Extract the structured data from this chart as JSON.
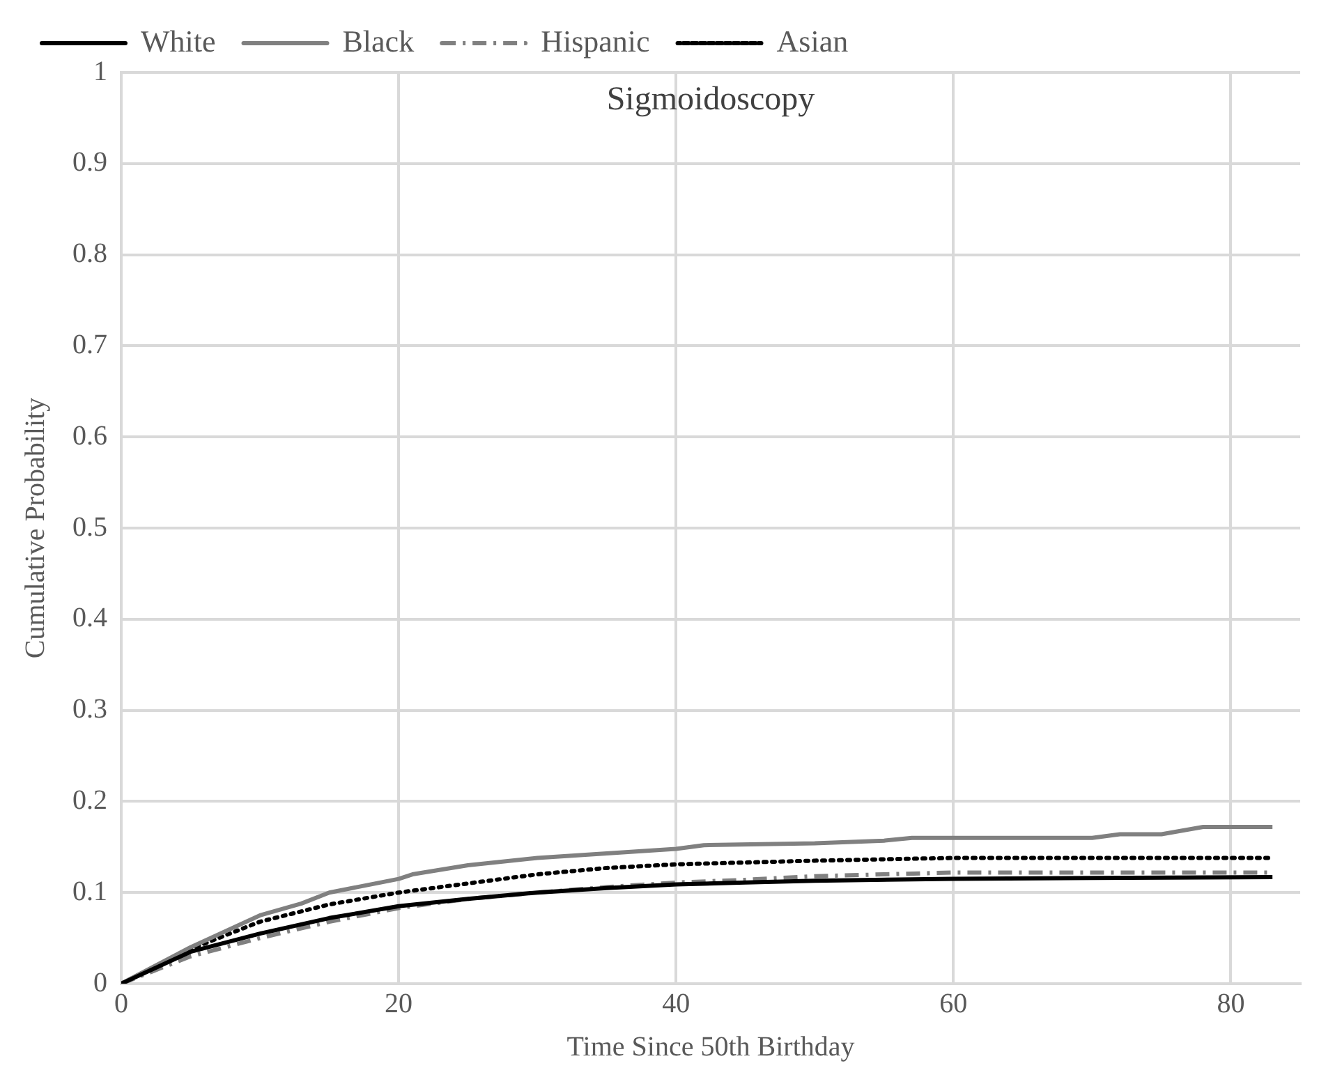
{
  "chart_data": {
    "type": "line",
    "title": "Sigmoidoscopy",
    "xlabel": "Time Since 50th Birthday",
    "ylabel": "Cumulative Probability",
    "xlim": [
      0,
      85
    ],
    "xticks": [
      0,
      20,
      40,
      60,
      80
    ],
    "ylim": [
      0,
      1
    ],
    "yticks": [
      0,
      0.1,
      0.2,
      0.3,
      0.4,
      0.5,
      0.6,
      0.7,
      0.8,
      0.9,
      1
    ],
    "grid": true,
    "legend": "top",
    "marker": "none",
    "series": [
      {
        "name": "White",
        "color": "#000000",
        "line_style": "solid",
        "x": [
          0,
          5,
          10,
          15,
          20,
          25,
          30,
          35,
          40,
          45,
          50,
          60,
          70,
          83
        ],
        "values": [
          0,
          0.035,
          0.055,
          0.072,
          0.085,
          0.093,
          0.1,
          0.105,
          0.109,
          0.111,
          0.113,
          0.115,
          0.116,
          0.117
        ]
      },
      {
        "name": "Black",
        "color": "#808080",
        "line_style": "solid",
        "x": [
          0,
          5,
          10,
          13,
          15,
          20,
          21,
          25,
          30,
          35,
          40,
          42,
          50,
          55,
          57,
          70,
          72,
          75,
          78,
          83
        ],
        "values": [
          0,
          0.04,
          0.075,
          0.088,
          0.1,
          0.115,
          0.12,
          0.13,
          0.138,
          0.143,
          0.148,
          0.152,
          0.154,
          0.157,
          0.16,
          0.16,
          0.164,
          0.164,
          0.172,
          0.172
        ]
      },
      {
        "name": "Hispanic",
        "color": "#808080",
        "line_style": "dashed",
        "x": [
          0,
          5,
          10,
          15,
          20,
          25,
          30,
          35,
          40,
          45,
          50,
          55,
          60,
          83
        ],
        "values": [
          0,
          0.03,
          0.05,
          0.068,
          0.083,
          0.093,
          0.1,
          0.106,
          0.111,
          0.114,
          0.118,
          0.12,
          0.122,
          0.122
        ]
      },
      {
        "name": "Asian",
        "color": "#000000",
        "line_style": "dotted",
        "x": [
          0,
          5,
          10,
          15,
          20,
          25,
          30,
          35,
          40,
          50,
          60,
          83
        ],
        "values": [
          0,
          0.038,
          0.068,
          0.087,
          0.1,
          0.11,
          0.12,
          0.127,
          0.131,
          0.135,
          0.138,
          0.138
        ]
      }
    ]
  }
}
